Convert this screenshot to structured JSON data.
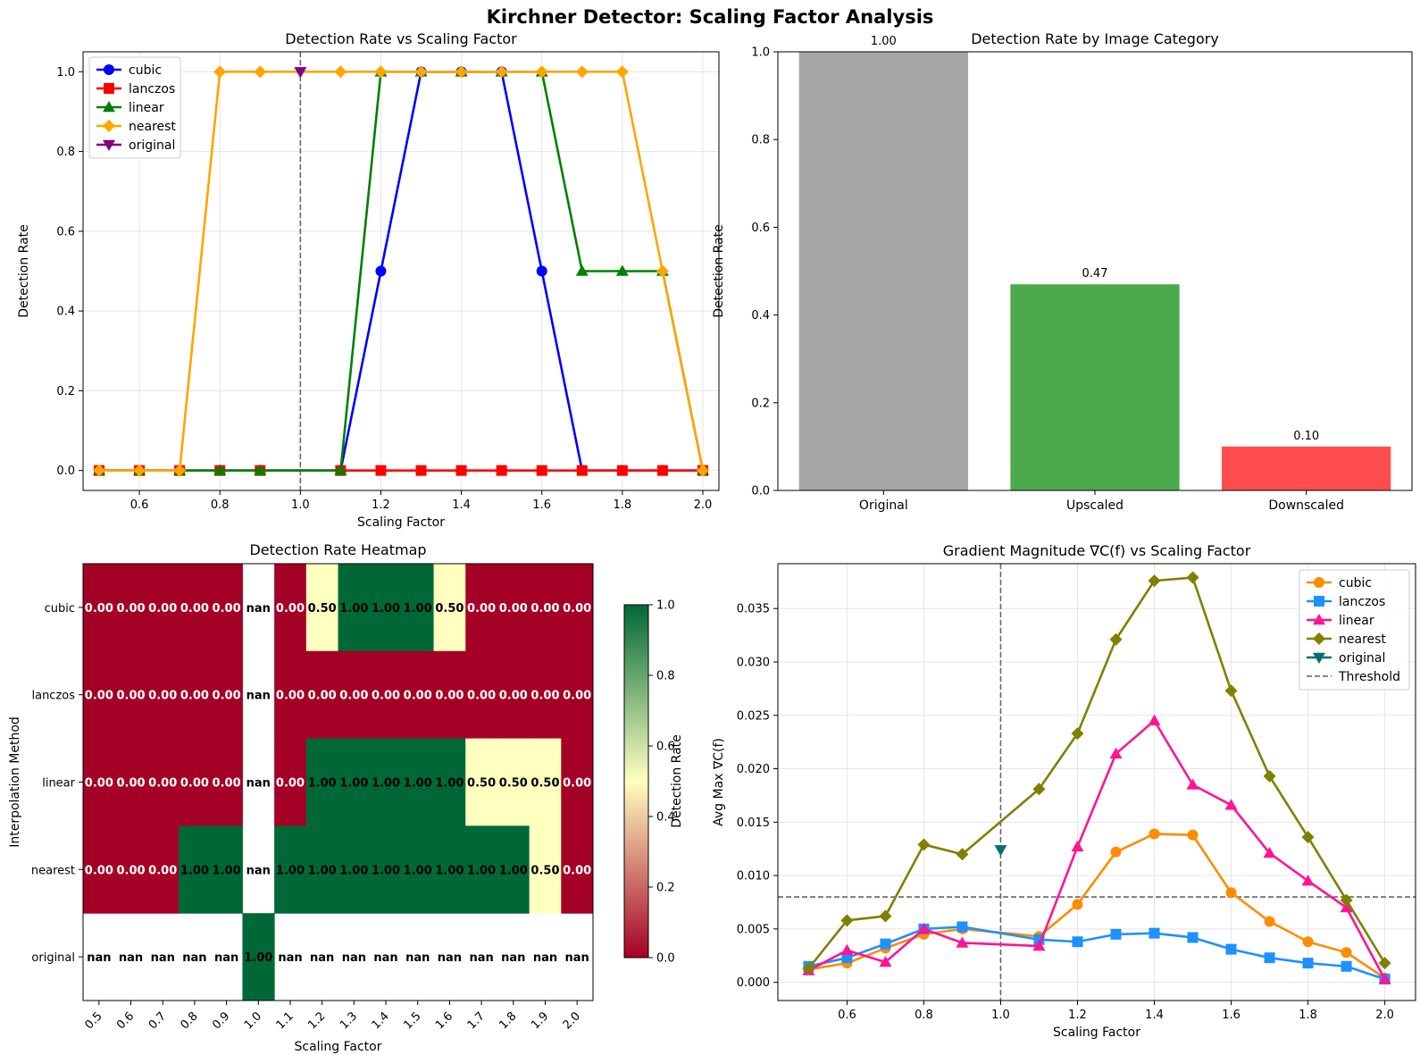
{
  "suptitle": "Kirchner Detector: Scaling Factor Analysis",
  "colors": {
    "cubic": "#0000ff",
    "lanczos": "#ff0000",
    "linear": "#008000",
    "nearest": "#ffa500",
    "original": "#800080",
    "bar_original": "#a6a6a6",
    "bar_upscaled": "#4caa4c",
    "bar_downscaled": "#ff4c4c",
    "g_cubic": "#ff8c00",
    "g_lanczos": "#1e90ff",
    "g_linear": "#ff1493",
    "g_nearest": "#808000",
    "g_original": "#007070",
    "heat_low": "#a50026",
    "heat_mid": "#ffffbf",
    "heat_high": "#006837"
  },
  "chart_data": [
    {
      "type": "line",
      "title": "Detection Rate vs Scaling Factor",
      "xlabel": "Scaling Factor",
      "ylabel": "Detection Rate",
      "xlim": [
        0.46,
        2.04
      ],
      "ylim": [
        -0.05,
        1.05
      ],
      "xticks": [
        0.6,
        0.8,
        1.0,
        1.2,
        1.4,
        1.6,
        1.8,
        2.0
      ],
      "xtick_labels": [
        "0.6",
        "0.8",
        "1.0",
        "1.2",
        "1.4",
        "1.6",
        "1.8",
        "2.0"
      ],
      "yticks": [
        0,
        0.2,
        0.4,
        0.6,
        0.8,
        1.0
      ],
      "ytick_labels": [
        "0.0",
        "0.2",
        "0.4",
        "0.6",
        "0.8",
        "1.0"
      ],
      "grid": true,
      "legend_position": "upper-left",
      "vline": 1.0,
      "x": [
        0.5,
        0.6,
        0.7,
        0.8,
        0.9,
        1.1,
        1.2,
        1.3,
        1.4,
        1.5,
        1.6,
        1.7,
        1.8,
        1.9,
        2.0
      ],
      "series": [
        {
          "name": "cubic",
          "marker": "circle",
          "values": [
            0,
            0,
            0,
            0,
            0,
            0,
            0.5,
            1,
            1,
            1,
            0.5,
            0,
            0,
            0,
            0
          ]
        },
        {
          "name": "lanczos",
          "marker": "square",
          "values": [
            0,
            0,
            0,
            0,
            0,
            0,
            0,
            0,
            0,
            0,
            0,
            0,
            0,
            0,
            0
          ]
        },
        {
          "name": "linear",
          "marker": "triangle-up",
          "values": [
            0,
            0,
            0,
            0,
            0,
            0,
            1,
            1,
            1,
            1,
            1,
            0.5,
            0.5,
            0.5,
            0
          ]
        },
        {
          "name": "nearest",
          "marker": "diamond",
          "values": [
            0,
            0,
            0,
            1,
            1,
            1,
            1,
            1,
            1,
            1,
            1,
            1,
            1,
            0.5,
            0
          ]
        },
        {
          "name": "original",
          "marker": "triangle-down",
          "x": [
            1.0
          ],
          "values": [
            1
          ]
        }
      ]
    },
    {
      "type": "bar",
      "title": "Detection Rate by Image Category",
      "ylabel": "Detection Rate",
      "categories": [
        "Original",
        "Upscaled",
        "Downscaled"
      ],
      "values": [
        1.0,
        0.47,
        0.1
      ],
      "value_labels": [
        "1.00",
        "0.47",
        "0.10"
      ],
      "ylim": [
        0,
        1.0
      ],
      "yticks": [
        0,
        0.2,
        0.4,
        0.6,
        0.8,
        1.0
      ],
      "ytick_labels": [
        "0.0",
        "0.2",
        "0.4",
        "0.6",
        "0.8",
        "1.0"
      ]
    },
    {
      "type": "heatmap",
      "title": "Detection Rate Heatmap",
      "xlabel": "Scaling Factor",
      "ylabel": "Interpolation Method",
      "x_labels": [
        "0.5",
        "0.6",
        "0.7",
        "0.8",
        "0.9",
        "1.0",
        "1.1",
        "1.2",
        "1.3",
        "1.4",
        "1.5",
        "1.6",
        "1.7",
        "1.8",
        "1.9",
        "2.0"
      ],
      "y_labels": [
        "cubic",
        "lanczos",
        "linear",
        "nearest",
        "original"
      ],
      "values": [
        [
          0,
          0,
          0,
          0,
          0,
          null,
          0,
          0.5,
          1,
          1,
          1,
          0.5,
          0,
          0,
          0,
          0
        ],
        [
          0,
          0,
          0,
          0,
          0,
          null,
          0,
          0,
          0,
          0,
          0,
          0,
          0,
          0,
          0,
          0
        ],
        [
          0,
          0,
          0,
          0,
          0,
          null,
          0,
          1,
          1,
          1,
          1,
          1,
          0.5,
          0.5,
          0.5,
          0
        ],
        [
          0,
          0,
          0,
          1,
          1,
          null,
          1,
          1,
          1,
          1,
          1,
          1,
          1,
          1,
          0.5,
          0
        ],
        [
          null,
          null,
          null,
          null,
          null,
          1,
          null,
          null,
          null,
          null,
          null,
          null,
          null,
          null,
          null,
          null
        ]
      ],
      "nan_label": "nan",
      "colorbar_label": "Detection Rate",
      "colorbar_range": [
        0,
        1
      ],
      "colorbar_ticks": [
        "0.0",
        "0.2",
        "0.4",
        "0.6",
        "0.8",
        "1.0"
      ]
    },
    {
      "type": "line",
      "title": "Gradient Magnitude ∇C(f) vs Scaling Factor",
      "xlabel": "Scaling Factor",
      "ylabel": "Avg Max ∇C(f)",
      "xlim": [
        0.42,
        2.08
      ],
      "ylim": [
        -0.0017,
        0.0392
      ],
      "xticks": [
        0.6,
        0.8,
        1.0,
        1.2,
        1.4,
        1.6,
        1.8,
        2.0
      ],
      "xtick_labels": [
        "0.6",
        "0.8",
        "1.0",
        "1.2",
        "1.4",
        "1.6",
        "1.8",
        "2.0"
      ],
      "yticks": [
        0,
        0.005,
        0.01,
        0.015,
        0.02,
        0.025,
        0.03,
        0.035
      ],
      "ytick_labels": [
        "0.000",
        "0.005",
        "0.010",
        "0.015",
        "0.020",
        "0.025",
        "0.030",
        "0.035"
      ],
      "grid": true,
      "legend_position": "upper-right",
      "vline": 1.0,
      "threshold": 0.008,
      "threshold_label": "Threshold",
      "x": [
        0.5,
        0.6,
        0.7,
        0.8,
        0.9,
        1.1,
        1.2,
        1.3,
        1.4,
        1.5,
        1.6,
        1.7,
        1.8,
        1.9,
        2.0
      ],
      "series": [
        {
          "name": "cubic",
          "marker": "circle",
          "values": [
            0.0012,
            0.0018,
            0.0032,
            0.0045,
            0.005,
            0.0043,
            0.0073,
            0.0122,
            0.0139,
            0.0138,
            0.0084,
            0.0057,
            0.0038,
            0.0028,
            0.0004
          ]
        },
        {
          "name": "lanczos",
          "marker": "square",
          "values": [
            0.0015,
            0.0023,
            0.0036,
            0.005,
            0.0052,
            0.004,
            0.0038,
            0.0045,
            0.0046,
            0.0042,
            0.0031,
            0.0023,
            0.0018,
            0.0015,
            0.0003
          ]
        },
        {
          "name": "linear",
          "marker": "triangle-up",
          "values": [
            0.0011,
            0.003,
            0.0019,
            0.005,
            0.0037,
            0.0034,
            0.0127,
            0.0214,
            0.0245,
            0.0185,
            0.0166,
            0.0121,
            0.0095,
            0.007,
            0.0003
          ]
        },
        {
          "name": "nearest",
          "marker": "diamond",
          "values": [
            0.0013,
            0.0058,
            0.0062,
            0.0129,
            0.012,
            0.0181,
            0.0233,
            0.0321,
            0.0376,
            0.0379,
            0.0273,
            0.0193,
            0.0136,
            0.0077,
            0.0018
          ]
        },
        {
          "name": "original",
          "marker": "triangle-down",
          "x": [
            1.0
          ],
          "values": [
            0.0124
          ]
        }
      ]
    }
  ]
}
